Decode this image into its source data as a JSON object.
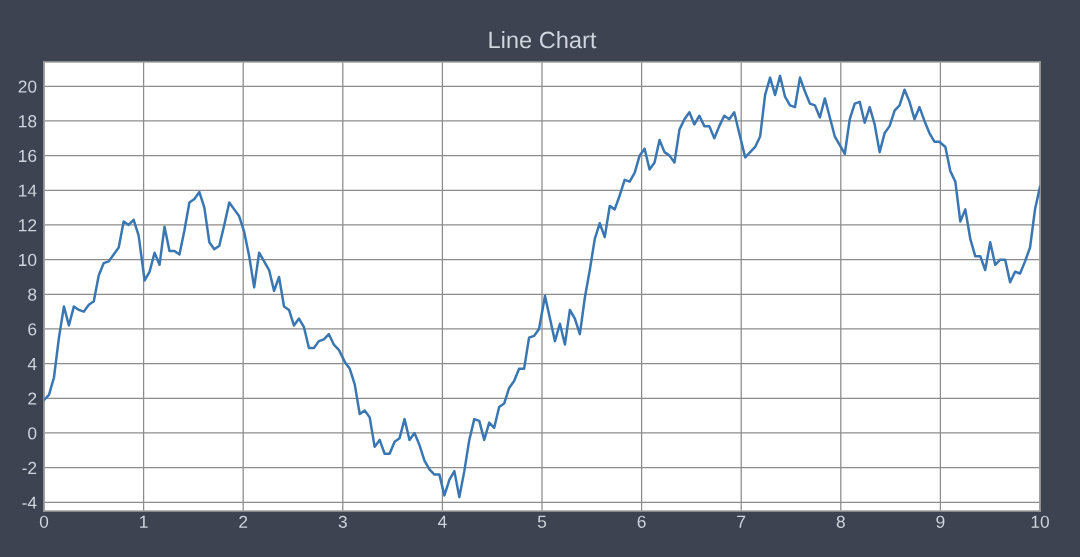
{
  "chart_data": {
    "type": "line",
    "title": "Line Chart",
    "x": [
      0.0,
      0.05,
      0.1,
      0.15,
      0.2,
      0.25,
      0.3,
      0.35,
      0.4,
      0.45,
      0.5,
      0.55,
      0.6,
      0.65,
      0.7,
      0.75,
      0.8,
      0.85,
      0.9,
      0.95,
      1.01,
      1.06,
      1.11,
      1.16,
      1.21,
      1.26,
      1.31,
      1.36,
      1.41,
      1.46,
      1.51,
      1.56,
      1.61,
      1.66,
      1.71,
      1.76,
      1.81,
      1.86,
      1.91,
      1.96,
      2.01,
      2.06,
      2.11,
      2.16,
      2.21,
      2.26,
      2.31,
      2.36,
      2.41,
      2.46,
      2.51,
      2.56,
      2.61,
      2.66,
      2.71,
      2.76,
      2.81,
      2.86,
      2.91,
      2.96,
      3.02,
      3.07,
      3.12,
      3.17,
      3.22,
      3.27,
      3.32,
      3.37,
      3.42,
      3.47,
      3.52,
      3.57,
      3.62,
      3.67,
      3.72,
      3.77,
      3.82,
      3.87,
      3.92,
      3.97,
      4.02,
      4.07,
      4.12,
      4.17,
      4.22,
      4.27,
      4.32,
      4.37,
      4.42,
      4.47,
      4.52,
      4.57,
      4.62,
      4.67,
      4.72,
      4.77,
      4.82,
      4.87,
      4.92,
      4.97,
      5.03,
      5.08,
      5.13,
      5.18,
      5.23,
      5.28,
      5.33,
      5.38,
      5.43,
      5.48,
      5.53,
      5.58,
      5.63,
      5.68,
      5.73,
      5.78,
      5.83,
      5.88,
      5.93,
      5.98,
      6.03,
      6.08,
      6.13,
      6.18,
      6.23,
      6.28,
      6.33,
      6.38,
      6.43,
      6.48,
      6.53,
      6.58,
      6.63,
      6.68,
      6.73,
      6.78,
      6.83,
      6.88,
      6.93,
      6.98,
      7.04,
      7.09,
      7.14,
      7.19,
      7.24,
      7.29,
      7.34,
      7.39,
      7.44,
      7.49,
      7.54,
      7.59,
      7.64,
      7.69,
      7.74,
      7.79,
      7.84,
      7.89,
      7.94,
      7.99,
      8.04,
      8.09,
      8.14,
      8.19,
      8.24,
      8.29,
      8.34,
      8.39,
      8.44,
      8.49,
      8.54,
      8.59,
      8.64,
      8.69,
      8.74,
      8.79,
      8.84,
      8.89,
      8.94,
      8.99,
      9.05,
      9.1,
      9.15,
      9.2,
      9.25,
      9.3,
      9.35,
      9.4,
      9.45,
      9.5,
      9.55,
      9.6,
      9.65,
      9.7,
      9.75,
      9.8,
      9.85,
      9.9,
      9.95,
      10.0
    ],
    "series": [
      {
        "color": "#3a77b2",
        "values": [
          1.9,
          2.2,
          3.2,
          5.5,
          7.3,
          6.2,
          7.3,
          7.1,
          7.0,
          7.4,
          7.6,
          9.1,
          9.8,
          9.9,
          10.3,
          10.7,
          12.2,
          12.0,
          12.3,
          11.4,
          8.8,
          9.3,
          10.4,
          9.7,
          11.9,
          10.5,
          10.5,
          10.3,
          11.7,
          13.3,
          13.5,
          13.9,
          13.0,
          11.0,
          10.6,
          10.8,
          12.0,
          13.3,
          12.9,
          12.5,
          11.6,
          10.2,
          8.4,
          10.4,
          9.9,
          9.4,
          8.2,
          9.0,
          7.3,
          7.1,
          6.2,
          6.6,
          6.1,
          4.9,
          4.9,
          5.3,
          5.4,
          5.7,
          5.1,
          4.8,
          4.1,
          3.7,
          2.8,
          1.1,
          1.3,
          0.9,
          -0.8,
          -0.4,
          -1.2,
          -1.2,
          -0.5,
          -0.3,
          0.8,
          -0.4,
          0.0,
          -0.7,
          -1.6,
          -2.1,
          -2.4,
          -2.4,
          -3.6,
          -2.7,
          -2.2,
          -3.7,
          -2.2,
          -0.4,
          0.8,
          0.7,
          -0.4,
          0.6,
          0.3,
          1.5,
          1.7,
          2.6,
          3.0,
          3.7,
          3.7,
          5.5,
          5.6,
          6.0,
          7.9,
          6.6,
          5.3,
          6.3,
          5.1,
          7.1,
          6.6,
          5.7,
          7.8,
          9.4,
          11.2,
          12.1,
          11.3,
          13.1,
          12.9,
          13.7,
          14.6,
          14.5,
          15.0,
          16.0,
          16.4,
          15.2,
          15.6,
          16.9,
          16.2,
          16.0,
          15.6,
          17.5,
          18.1,
          18.5,
          17.8,
          18.3,
          17.7,
          17.7,
          17.0,
          17.7,
          18.3,
          18.1,
          18.5,
          17.3,
          15.9,
          16.2,
          16.5,
          17.1,
          19.5,
          20.5,
          19.5,
          20.6,
          19.4,
          18.9,
          18.8,
          20.5,
          19.7,
          19.0,
          18.9,
          18.2,
          19.3,
          18.2,
          17.1,
          16.6,
          16.1,
          18.1,
          19.0,
          19.1,
          17.9,
          18.8,
          17.8,
          16.2,
          17.3,
          17.7,
          18.6,
          18.9,
          19.8,
          19.1,
          18.1,
          18.8,
          18.0,
          17.3,
          16.8,
          16.8,
          16.5,
          15.1,
          14.5,
          12.2,
          12.9,
          11.2,
          10.2,
          10.2,
          9.4,
          11.0,
          9.7,
          10.0,
          10.0,
          8.7,
          9.3,
          9.2,
          9.9,
          10.7,
          12.9,
          14.2
        ]
      }
    ],
    "xlim": [
      0,
      10
    ],
    "ylim": [
      -4.5,
      21.4
    ],
    "xticks": [
      0,
      1,
      2,
      3,
      4,
      5,
      6,
      7,
      8,
      9,
      10
    ],
    "yticks": [
      -4,
      -2,
      0,
      2,
      4,
      6,
      8,
      10,
      12,
      14,
      16,
      18,
      20
    ],
    "grid": true,
    "line_style": "solid"
  }
}
